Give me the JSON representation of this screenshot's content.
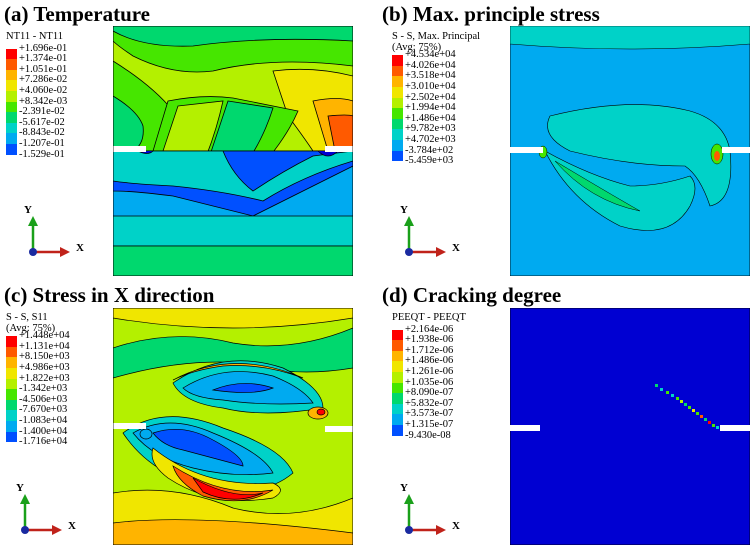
{
  "panels": [
    {
      "title": "(a) Temperature",
      "legend_header": [
        "NT11 - NT11"
      ],
      "legend_values": [
        "+1.696e-01",
        "+1.374e-01",
        "+1.051e-01",
        "+7.286e-02",
        "+4.060e-02",
        "+8.342e-03",
        "-2.391e-02",
        "-5.617e-02",
        "-8.843e-02",
        "-1.207e-01",
        "-1.529e-01"
      ],
      "axis_y": "Y",
      "axis_x": "X"
    },
    {
      "title": "(b) Max. principle stress",
      "legend_header": [
        "S - S, Max. Principal",
        "(Avg: 75%)"
      ],
      "legend_values": [
        "+4.534e+04",
        "+4.026e+04",
        "+3.518e+04",
        "+3.010e+04",
        "+2.502e+04",
        "+1.994e+04",
        "+1.486e+04",
        "+9.782e+03",
        "+4.702e+03",
        "-3.784e+02",
        "-5.459e+03"
      ],
      "axis_y": "Y",
      "axis_x": "X"
    },
    {
      "title": "(c) Stress in X direction",
      "legend_header": [
        "S - S, S11",
        "(Avg: 75%)"
      ],
      "legend_values": [
        "+1.448e+04",
        "+1.131e+04",
        "+8.150e+03",
        "+4.986e+03",
        "+1.822e+03",
        "-1.342e+03",
        "-4.506e+03",
        "-7.670e+03",
        "-1.083e+04",
        "-1.400e+04",
        "-1.716e+04"
      ],
      "axis_y": "Y",
      "axis_x": "X"
    },
    {
      "title": "(d) Cracking degree",
      "legend_header": [
        "PEEQT - PEEQT"
      ],
      "legend_values": [
        "+2.164e-06",
        "+1.938e-06",
        "+1.712e-06",
        "+1.486e-06",
        "+1.261e-06",
        "+1.035e-06",
        "+8.090e-07",
        "+5.832e-07",
        "+3.573e-07",
        "+1.315e-07",
        "-9.430e-08"
      ],
      "axis_y": "Y",
      "axis_x": "X"
    }
  ],
  "colormap": [
    "#ff0000",
    "#ff5a00",
    "#ffb400",
    "#f0e600",
    "#b4f000",
    "#46e600",
    "#00d86e",
    "#00d2c8",
    "#00aaf0",
    "#0050ff",
    "#0000d2"
  ]
}
